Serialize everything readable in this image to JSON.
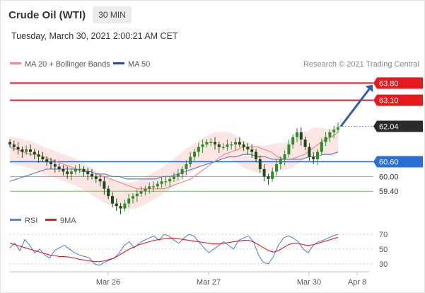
{
  "header": {
    "title": "Crude Oil (WTI)",
    "timeframe": "30 MIN",
    "date": "Tuesday, March 30, 2021 2:00:21 AM CET"
  },
  "legend": {
    "ma20_label": "MA 20 + Bollinger Bands",
    "ma50_label": "MA 50",
    "credit": "Research © 2021 Trading Central",
    "rsi_label": "RSI",
    "rsi_ma_label": "9MA"
  },
  "colors": {
    "resistance": "#e8191c",
    "support_blue": "#2a6fd6",
    "support_green": "#74b86b",
    "candle_up": "#2e8b2e",
    "candle_down": "#1a4a1a",
    "ma20": "#f08a8a",
    "ma50": "#5b86c5",
    "band_fill": "#fde0de",
    "arrow": "#2f5fa7",
    "current_price_bg": "#2b2b2b",
    "rsi": "#5b86d6",
    "rsi_ma": "#e8191c"
  },
  "chart_data": [
    {
      "type": "line",
      "title": "Crude Oil (WTI)",
      "xlabel": "",
      "ylabel": "",
      "ylim": [
        58.6,
        64.3
      ],
      "x_ticks": [
        "Mar 26",
        "Mar 27",
        "Mar 30",
        "Apr 8"
      ],
      "levels": [
        {
          "value": 63.8,
          "label": "63.80",
          "kind": "resistance"
        },
        {
          "value": 63.1,
          "label": "63.10",
          "kind": "resistance"
        },
        {
          "value": 62.04,
          "label": "62.04",
          "kind": "current"
        },
        {
          "value": 60.6,
          "label": "60.60",
          "kind": "pivot"
        },
        {
          "value": 60.0,
          "label": "60.00",
          "kind": "support"
        },
        {
          "value": 59.4,
          "label": "59.40",
          "kind": "support"
        }
      ],
      "close": [
        61.3,
        61.2,
        61.1,
        61.0,
        61.1,
        61.0,
        60.9,
        60.8,
        60.7,
        60.6,
        60.5,
        60.4,
        60.3,
        60.2,
        60.1,
        60.2,
        60.3,
        60.3,
        60.2,
        60.1,
        60.0,
        59.9,
        59.8,
        59.5,
        59.2,
        58.9,
        58.8,
        58.7,
        58.9,
        59.1,
        59.2,
        59.3,
        59.4,
        59.5,
        59.6,
        59.6,
        59.7,
        59.8,
        59.8,
        59.9,
        60.0,
        60.1,
        60.3,
        60.5,
        60.8,
        61.0,
        61.2,
        61.3,
        61.4,
        61.4,
        61.3,
        61.2,
        61.2,
        61.3,
        61.3,
        61.4,
        61.3,
        61.2,
        61.1,
        61.0,
        60.7,
        60.3,
        60.0,
        59.9,
        60.2,
        60.5,
        60.7,
        60.9,
        61.3,
        61.6,
        61.8,
        61.5,
        61.2,
        60.8,
        60.7,
        61.0,
        61.4,
        61.6,
        61.8,
        61.9,
        62.0
      ],
      "series": [
        {
          "name": "MA 20",
          "values": [
            61.2,
            61.1,
            61.0,
            60.9,
            60.9,
            60.8,
            60.7,
            60.6,
            60.5,
            60.4,
            60.3,
            60.3,
            60.2,
            60.1,
            60.0,
            59.9,
            59.8,
            59.7,
            59.6,
            59.5,
            59.5,
            59.5,
            59.5,
            59.5,
            59.6,
            59.7,
            59.8,
            59.9,
            60.1,
            60.3,
            60.5,
            60.7,
            60.9,
            61.0,
            61.1,
            61.2,
            61.2,
            61.2,
            61.1,
            61.0,
            60.8,
            60.7,
            60.7,
            60.8,
            60.9,
            61.1,
            61.3,
            61.5,
            61.6,
            61.8
          ]
        },
        {
          "name": "MA 50",
          "values": [
            59.8,
            59.9,
            60.0,
            60.1,
            60.2,
            60.3,
            60.3,
            60.3,
            60.3,
            60.3,
            60.2,
            60.2,
            60.1,
            60.1,
            60.0,
            60.0,
            59.9,
            59.9,
            59.9,
            59.9,
            59.9,
            60.0,
            60.0,
            60.1,
            60.2,
            60.3,
            60.4,
            60.5,
            60.6,
            60.7,
            60.8,
            60.8,
            60.9,
            60.9,
            60.8,
            60.8,
            60.7,
            60.7,
            60.7,
            60.7,
            60.7,
            60.8,
            60.8,
            60.9,
            60.9,
            61.0
          ]
        }
      ]
    },
    {
      "type": "line",
      "title": "RSI",
      "ylim": [
        25,
        75
      ],
      "y_ticks": [
        "70",
        "50",
        "30"
      ],
      "series": [
        {
          "name": "RSI",
          "values": [
            52,
            58,
            48,
            63,
            55,
            45,
            50,
            42,
            38,
            48,
            52,
            55,
            50,
            45,
            42,
            40,
            38,
            30,
            28,
            32,
            35,
            38,
            45,
            55,
            60,
            52,
            58,
            62,
            65,
            68,
            62,
            70,
            68,
            62,
            58,
            65,
            70,
            68,
            60,
            52,
            45,
            50,
            55,
            60,
            55,
            50,
            62,
            65,
            68,
            60,
            42,
            32,
            30,
            40,
            55,
            65,
            68,
            65,
            60,
            50,
            45,
            55,
            60,
            62,
            65,
            68,
            70
          ]
        },
        {
          "name": "9MA",
          "values": [
            58,
            56,
            54,
            52,
            50,
            48,
            46,
            44,
            42,
            41,
            40,
            40,
            39,
            38,
            36,
            35,
            34,
            33,
            33,
            34,
            36,
            38,
            42,
            46,
            50,
            53,
            56,
            58,
            60,
            62,
            63,
            64,
            65,
            65,
            64,
            63,
            62,
            61,
            60,
            59,
            58,
            57,
            57,
            58,
            59,
            60,
            61,
            62,
            62,
            60,
            56,
            52,
            48,
            46,
            48,
            52,
            56,
            58,
            58,
            56,
            55,
            56,
            58,
            60,
            62,
            64,
            66
          ]
        }
      ]
    }
  ]
}
